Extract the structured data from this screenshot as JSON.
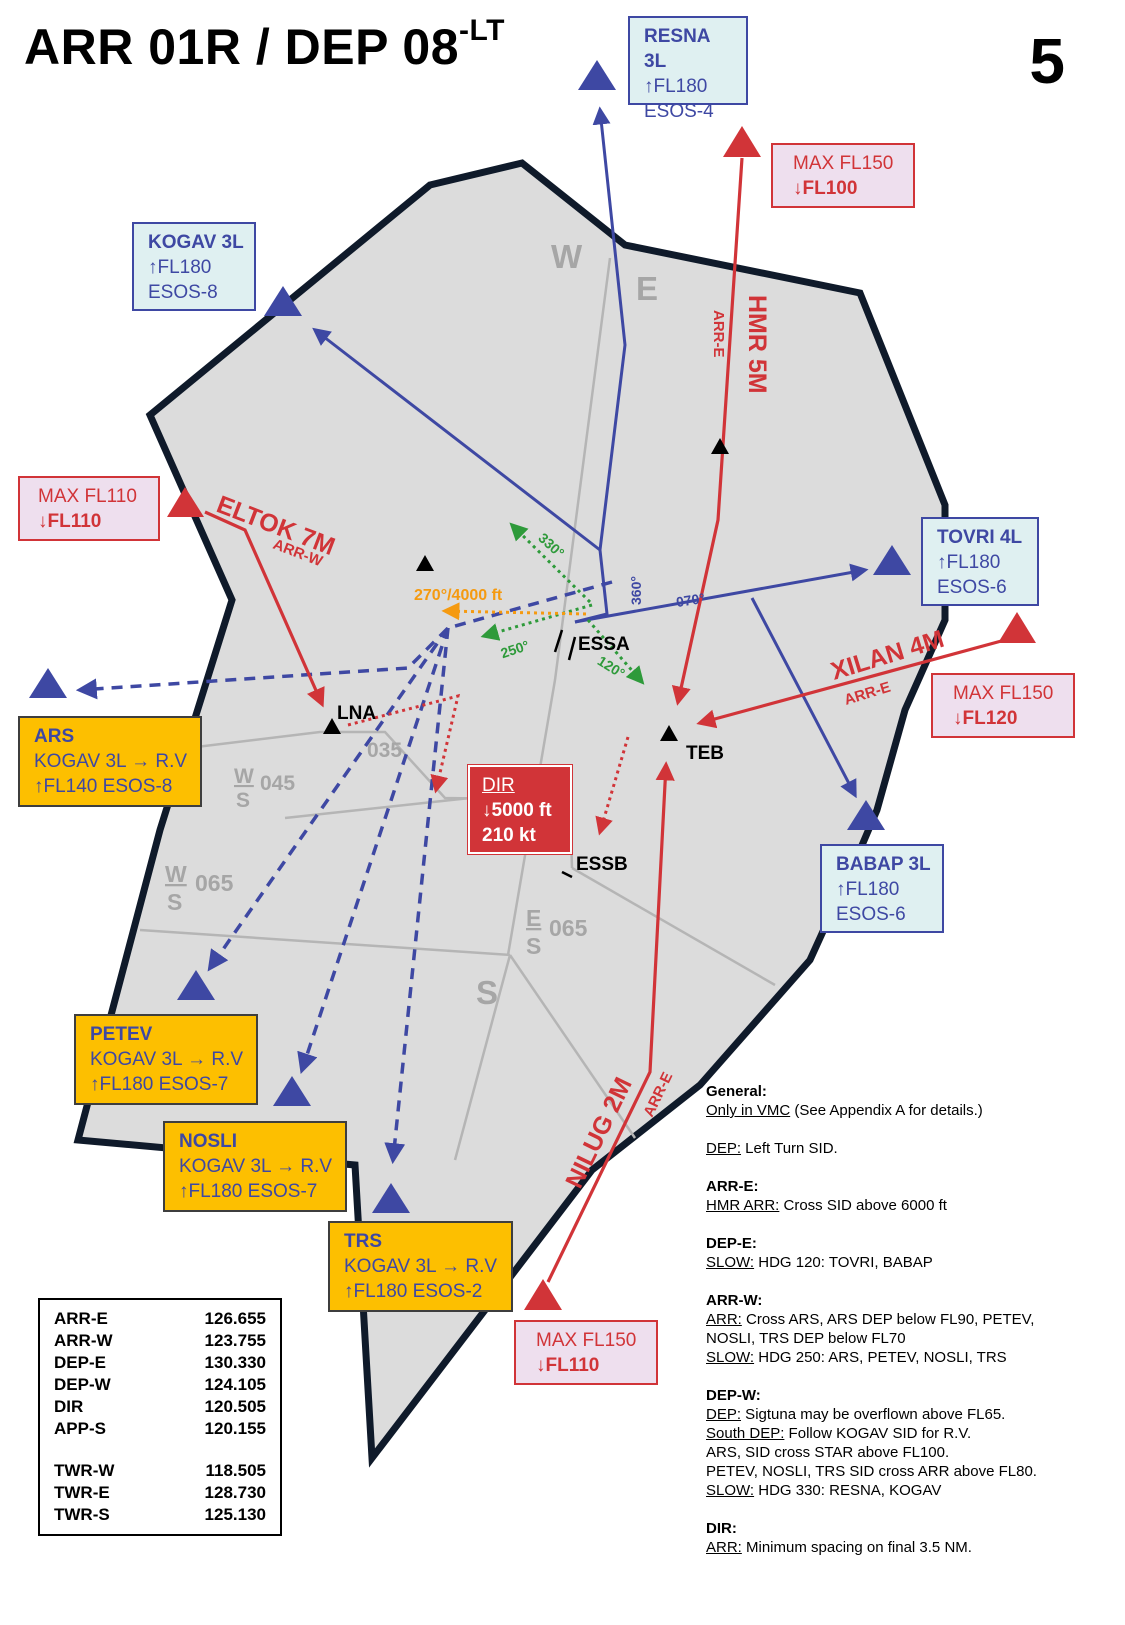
{
  "header": {
    "title": "ARR 01R  / DEP 08",
    "title_sup": "-LT",
    "page_number": "5"
  },
  "sectors": [
    "W",
    "E",
    "S"
  ],
  "sub_sectors": [
    {
      "letters": [
        "W",
        "S"
      ],
      "value": "045"
    },
    {
      "letters": [
        "W",
        "S"
      ],
      "value": "065"
    },
    {
      "letters": [
        "E",
        "S"
      ],
      "value": "065"
    }
  ],
  "label_035": "035",
  "airports": {
    "essa": "ESSA",
    "essb": "ESSB"
  },
  "points": {
    "lna": "LNA",
    "teb": "TEB"
  },
  "headings": {
    "h360": "360°",
    "h070": "070°",
    "h330": "330°",
    "h250": "250°",
    "h120": "120°",
    "orange": "270°/4000 ft"
  },
  "arrivals": [
    {
      "name": "HMR 5M",
      "sector": "ARR-E"
    },
    {
      "name": "ELTOK 7M",
      "sector": "ARR-W"
    },
    {
      "name": "XILAN 4M",
      "sector": "ARR-E"
    },
    {
      "name": "NILUG 2M",
      "sector": "ARR-E"
    }
  ],
  "departure_boxes": [
    {
      "name": "RESNA 3L",
      "level": "↑FL180",
      "sector": "ESOS-4"
    },
    {
      "name": "KOGAV 3L",
      "level": "↑FL180",
      "sector": "ESOS-8"
    },
    {
      "name": "TOVRI 4L",
      "level": "↑FL180",
      "sector": "ESOS-6"
    },
    {
      "name": "BABAP 3L",
      "level": "↑FL180",
      "sector": "ESOS-6"
    }
  ],
  "arrival_boxes": [
    {
      "max": "MAX FL150",
      "level": "↓FL100"
    },
    {
      "max": "MAX FL110",
      "level": "↓FL110"
    },
    {
      "max": "MAX FL150",
      "level": "↓FL120"
    },
    {
      "max": "MAX FL150",
      "level": "↓FL110"
    }
  ],
  "radar_boxes": [
    {
      "name": "ARS",
      "route": "KOGAV 3L → R.V",
      "level": "↑FL140 ESOS-8"
    },
    {
      "name": "PETEV",
      "route": "KOGAV 3L → R.V",
      "level": "↑FL180 ESOS-7"
    },
    {
      "name": "NOSLI",
      "route": "KOGAV 3L → R.V",
      "level": "↑FL180 ESOS-7"
    },
    {
      "name": "TRS",
      "route": "KOGAV 3L → R.V",
      "level": "↑FL180 ESOS-2"
    }
  ],
  "dir_box": {
    "title": "DIR",
    "level": "↓5000 ft",
    "speed": "210 kt"
  },
  "frequencies": [
    {
      "name": "ARR-E",
      "freq": "126.655"
    },
    {
      "name": "ARR-W",
      "freq": "123.755"
    },
    {
      "name": "DEP-E",
      "freq": "130.330"
    },
    {
      "name": "DEP-W",
      "freq": "124.105"
    },
    {
      "name": "DIR",
      "freq": "120.505"
    },
    {
      "name": "APP-S",
      "freq": "120.155"
    },
    {
      "name": "TWR-W",
      "freq": "118.505"
    },
    {
      "name": "TWR-E",
      "freq": "128.730"
    },
    {
      "name": "TWR-S",
      "freq": "125.130"
    }
  ],
  "notes": {
    "general_h": "General:",
    "general_u": "Only in VMC",
    "general_t": " (See Appendix A for details.)",
    "dep_u": "DEP:",
    "dep_t": " Left Turn SID.",
    "arre_h": "ARR-E:",
    "arre_u": "HMR ARR:",
    "arre_t": " Cross SID above 6000 ft",
    "depe_h": "DEP-E:",
    "depe_u": "SLOW:",
    "depe_t": " HDG 120: TOVRI, BABAP",
    "arrw_h": "ARR-W:",
    "arrw_u1": "ARR:",
    "arrw_t1": " Cross ARS, ARS DEP below FL90, PETEV,",
    "arrw_t1b": "NOSLI, TRS DEP below FL70",
    "arrw_u2": "SLOW:",
    "arrw_t2": " HDG 250: ARS, PETEV, NOSLI, TRS",
    "depw_h": "DEP-W:",
    "depw_u1": "DEP:",
    "depw_t1": " Sigtuna may be overflown above FL65.",
    "depw_u2": "South DEP:",
    "depw_t2": " Follow KOGAV SID for R.V.",
    "depw_t3": "ARS, SID cross STAR above FL100.",
    "depw_t4": "PETEV, NOSLI, TRS SID cross ARR above FL80.",
    "depw_u3": "SLOW:",
    "depw_t5": " HDG 330: RESNA, KOGAV",
    "dir_h": "DIR:",
    "dir_u": "ARR:",
    "dir_t": " Minimum spacing on final 3.5 NM."
  },
  "colors": {
    "blue": "#3e48a3",
    "red": "#d13438",
    "orange": "#fdbf00",
    "green": "#2e9a3a",
    "amber": "#f59a10",
    "area": "#dcdcdc",
    "border": "#0f1a2a"
  }
}
